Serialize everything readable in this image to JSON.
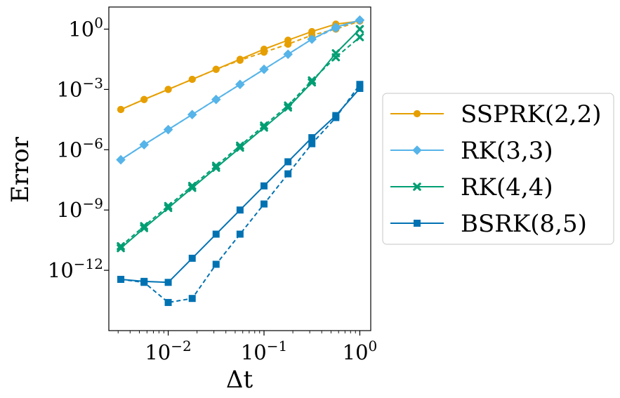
{
  "chart_data": {
    "type": "line",
    "title": "",
    "xlabel": "Δt",
    "ylabel": "Error",
    "xscale": "log",
    "yscale": "log",
    "xlim": [
      0.0024,
      1.3
    ],
    "ylim_exp": [
      -15.0,
      1.1
    ],
    "x_ticks": [
      {
        "value": 0.01,
        "base": "10",
        "exp": "−2"
      },
      {
        "value": 0.1,
        "base": "10",
        "exp": "−1"
      },
      {
        "value": 1,
        "base": "10",
        "exp": "0"
      }
    ],
    "y_ticks": [
      {
        "exp_value": 0,
        "base": "10",
        "exp": "0"
      },
      {
        "exp_value": -3,
        "base": "10",
        "exp": "−3"
      },
      {
        "exp_value": -6,
        "base": "10",
        "exp": "−6"
      },
      {
        "exp_value": -9,
        "base": "10",
        "exp": "−9"
      },
      {
        "exp_value": -12,
        "base": "10",
        "exp": "−12"
      }
    ],
    "x": [
      0.0032,
      0.0056,
      0.01,
      0.0178,
      0.0316,
      0.0562,
      0.1,
      0.178,
      0.316,
      0.562,
      1.0
    ],
    "legend_position": "outside-right",
    "series": [
      {
        "name": "SSPRK(2,2)",
        "color": "#E69F00",
        "marker": "circle",
        "solid_log10": [
          -4.0,
          -3.5,
          -3.0,
          -2.5,
          -2.0,
          -1.5,
          -1.0,
          -0.55,
          -0.12,
          0.25,
          0.4
        ],
        "dashed_log10": [
          -4.0,
          -3.5,
          -3.0,
          -2.5,
          -2.0,
          -1.55,
          -1.15,
          -0.75,
          -0.3,
          0.0,
          0.4
        ]
      },
      {
        "name": "RK(3,3)",
        "color": "#56B4E9",
        "marker": "diamond",
        "solid_log10": [
          -6.5,
          -5.75,
          -5.0,
          -4.25,
          -3.5,
          -2.75,
          -2.0,
          -1.25,
          -0.5,
          0.1,
          0.45
        ],
        "dashed_log10": [
          -6.5,
          -5.75,
          -5.0,
          -4.25,
          -3.5,
          -2.75,
          -2.0,
          -1.25,
          -0.5,
          0.05,
          0.45
        ]
      },
      {
        "name": "RK(4,4)",
        "color": "#009E73",
        "marker": "x",
        "solid_log10": [
          -10.9,
          -9.9,
          -8.9,
          -7.9,
          -6.9,
          -5.9,
          -4.9,
          -3.9,
          -2.65,
          -1.2,
          0.0
        ],
        "dashed_log10": [
          -10.8,
          -9.8,
          -8.8,
          -7.8,
          -6.8,
          -5.8,
          -4.8,
          -3.8,
          -2.55,
          -1.4,
          -0.4
        ]
      },
      {
        "name": "BSRK(8,5)",
        "color": "#0072B2",
        "marker": "square",
        "solid_log10": [
          -12.45,
          -12.55,
          -12.6,
          -11.4,
          -10.2,
          -9.0,
          -7.8,
          -6.6,
          -5.4,
          -4.3,
          -2.95
        ],
        "dashed_log10": [
          -12.45,
          -12.6,
          -13.6,
          -13.4,
          -11.7,
          -10.2,
          -8.7,
          -7.2,
          -5.7,
          -4.4,
          -2.75
        ]
      }
    ]
  }
}
